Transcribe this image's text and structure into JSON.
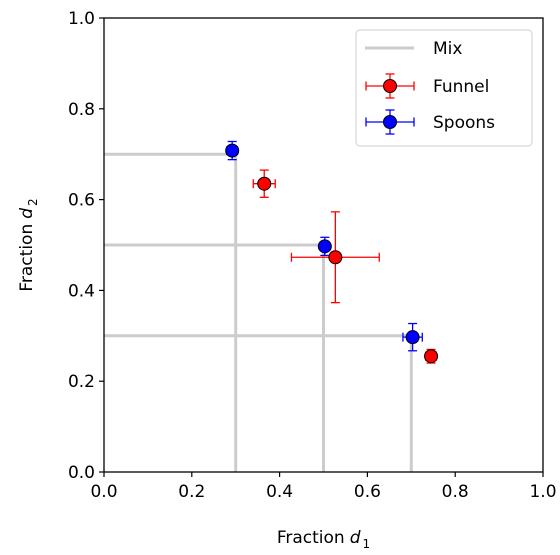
{
  "chart_data": {
    "type": "scatter",
    "xlabel": "Fraction",
    "xlabel_symbol": "d",
    "xlabel_sub": "1",
    "ylabel": "Fraction",
    "ylabel_symbol": "d",
    "ylabel_sub": "2",
    "xlim": [
      0.0,
      1.0
    ],
    "ylim": [
      0.0,
      1.0
    ],
    "xticks": [
      "0.0",
      "0.2",
      "0.4",
      "0.6",
      "0.8",
      "1.0"
    ],
    "yticks": [
      "0.0",
      "0.2",
      "0.4",
      "0.6",
      "0.8",
      "1.0"
    ],
    "grid": false,
    "legend_placement": "top-right",
    "mix": {
      "name": "Mix",
      "color": "#cccccc",
      "points": [
        {
          "x": 0.3,
          "y": 0.7
        },
        {
          "x": 0.5,
          "y": 0.5
        },
        {
          "x": 0.7,
          "y": 0.3
        }
      ]
    },
    "series": [
      {
        "name": "Funnel",
        "color": "#ff0000",
        "points": [
          {
            "x": 0.365,
            "y": 0.635,
            "xerr": 0.025,
            "yerr": 0.03
          },
          {
            "x": 0.527,
            "y": 0.473,
            "xerr": 0.1,
            "yerr": 0.1
          },
          {
            "x": 0.745,
            "y": 0.255,
            "xerr": 0.012,
            "yerr": 0.015
          }
        ]
      },
      {
        "name": "Spoons",
        "color": "#0000ff",
        "points": [
          {
            "x": 0.292,
            "y": 0.708,
            "xerr": 0.012,
            "yerr": 0.02
          },
          {
            "x": 0.503,
            "y": 0.497,
            "xerr": 0.01,
            "yerr": 0.02
          },
          {
            "x": 0.703,
            "y": 0.297,
            "xerr": 0.022,
            "yerr": 0.03
          }
        ]
      }
    ]
  }
}
